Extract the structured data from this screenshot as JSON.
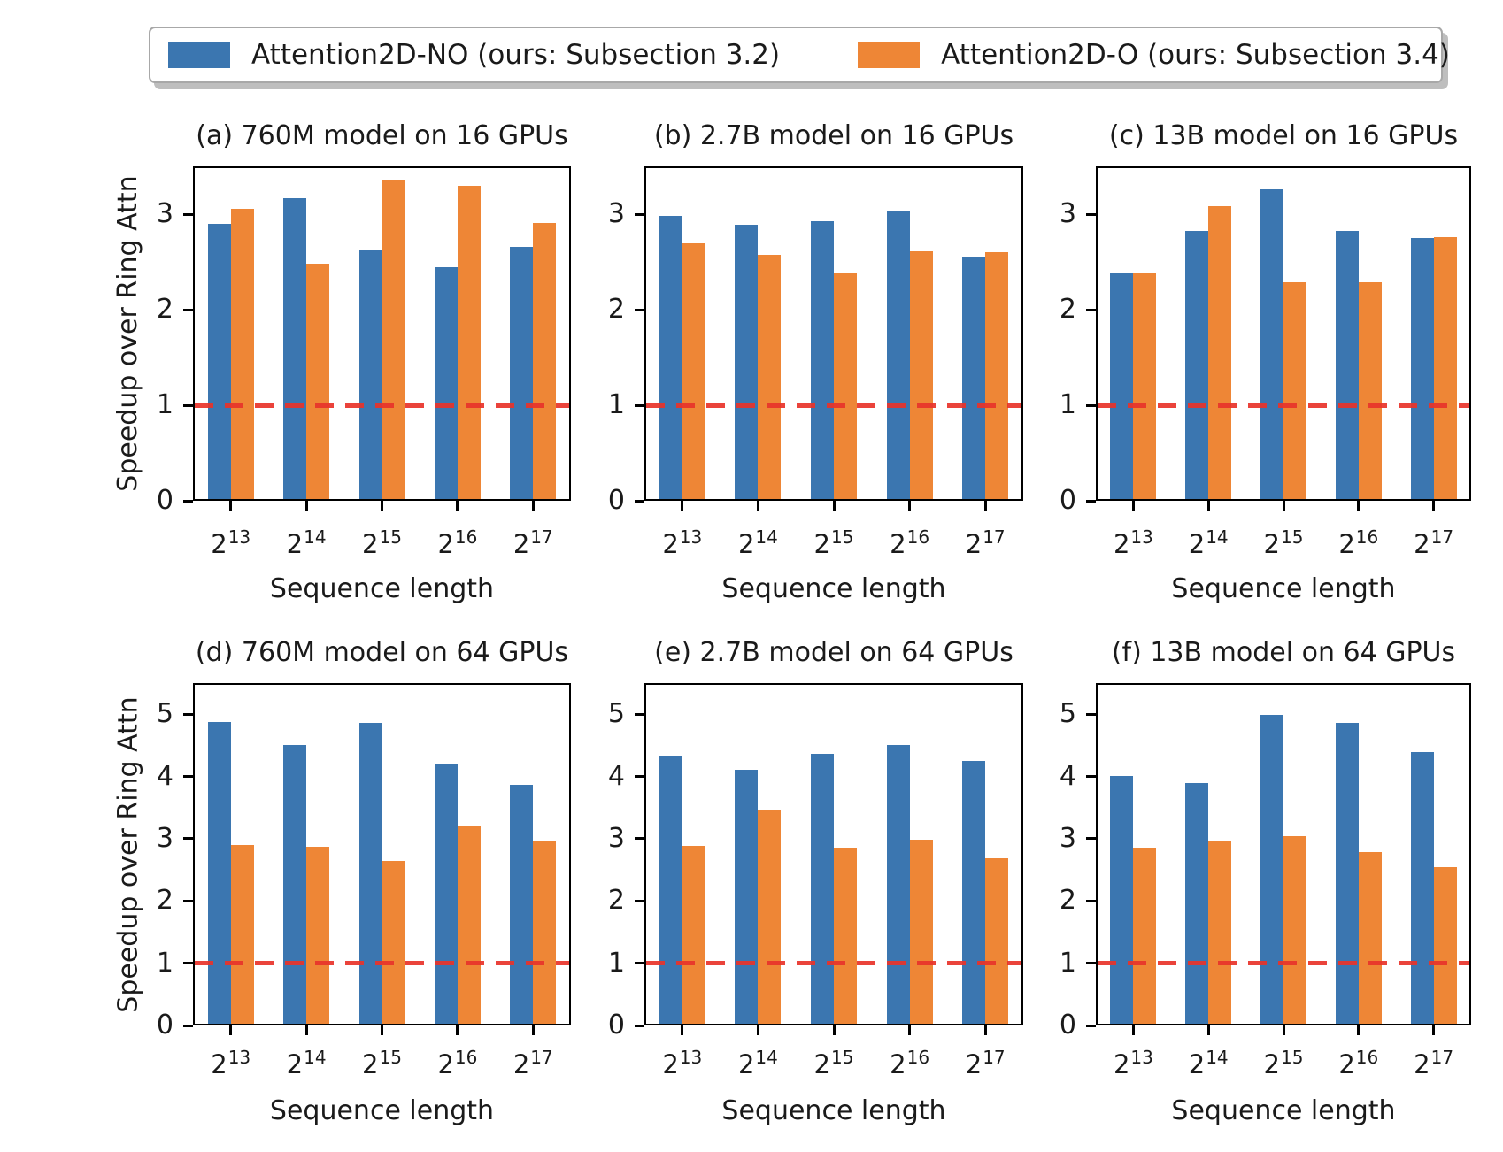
{
  "legend": {
    "items": [
      {
        "label": "Attention2D-NO (ours: Subsection 3.2)",
        "color": "#3b76b0"
      },
      {
        "label": "Attention2D-O (ours: Subsection 3.4)",
        "color": "#ee8636"
      }
    ]
  },
  "colors": {
    "series_blue": "#3b76b0",
    "series_orange": "#ee8636",
    "baseline_red": "#e8332a",
    "text": "#1a1a1a"
  },
  "chart_data": [
    {
      "id": "a",
      "type": "bar",
      "row": 0,
      "col": 0,
      "show_ylabel": true,
      "title": "(a) 760M model on 16 GPUs",
      "xlabel": "Sequence length",
      "ylabel": "Speedup over Ring Attn",
      "categories": [
        "2^13",
        "2^14",
        "2^15",
        "2^16",
        "2^17"
      ],
      "ylim": [
        0,
        3.5
      ],
      "yticks": [
        0,
        1,
        2,
        3
      ],
      "grid": false,
      "baseline": {
        "value": 1,
        "color": "#e8332a",
        "style": "dashed"
      },
      "series": [
        {
          "name": "Attention2D-NO (ours: Subsection 3.2)",
          "color": "#3b76b0",
          "values": [
            2.9,
            3.17,
            2.62,
            2.44,
            2.66
          ]
        },
        {
          "name": "Attention2D-O (ours: Subsection 3.4)",
          "color": "#ee8636",
          "values": [
            3.06,
            2.48,
            3.35,
            3.3,
            2.91
          ]
        }
      ]
    },
    {
      "id": "b",
      "type": "bar",
      "row": 0,
      "col": 1,
      "show_ylabel": false,
      "title": "(b) 2.7B model on 16 GPUs",
      "xlabel": "Sequence length",
      "ylabel": "Speedup over Ring Attn",
      "categories": [
        "2^13",
        "2^14",
        "2^15",
        "2^16",
        "2^17"
      ],
      "ylim": [
        0,
        3.5
      ],
      "yticks": [
        0,
        1,
        2,
        3
      ],
      "grid": false,
      "baseline": {
        "value": 1,
        "color": "#e8332a",
        "style": "dashed"
      },
      "series": [
        {
          "name": "Attention2D-NO (ours: Subsection 3.2)",
          "color": "#3b76b0",
          "values": [
            2.98,
            2.89,
            2.93,
            3.03,
            2.55
          ]
        },
        {
          "name": "Attention2D-O (ours: Subsection 3.4)",
          "color": "#ee8636",
          "values": [
            2.69,
            2.57,
            2.39,
            2.61,
            2.6
          ]
        }
      ]
    },
    {
      "id": "c",
      "type": "bar",
      "row": 0,
      "col": 2,
      "show_ylabel": false,
      "title": "(c) 13B model on 16 GPUs",
      "xlabel": "Sequence length",
      "ylabel": "Speedup over Ring Attn",
      "categories": [
        "2^13",
        "2^14",
        "2^15",
        "2^16",
        "2^17"
      ],
      "ylim": [
        0,
        3.5
      ],
      "yticks": [
        0,
        1,
        2,
        3
      ],
      "grid": false,
      "baseline": {
        "value": 1,
        "color": "#e8332a",
        "style": "dashed"
      },
      "series": [
        {
          "name": "Attention2D-NO (ours: Subsection 3.2)",
          "color": "#3b76b0",
          "values": [
            2.38,
            2.82,
            3.26,
            2.82,
            2.75
          ]
        },
        {
          "name": "Attention2D-O (ours: Subsection 3.4)",
          "color": "#ee8636",
          "values": [
            2.38,
            3.08,
            2.29,
            2.29,
            2.76
          ]
        }
      ]
    },
    {
      "id": "d",
      "type": "bar",
      "row": 1,
      "col": 0,
      "show_ylabel": true,
      "title": "(d) 760M model on 64 GPUs",
      "xlabel": "Sequence length",
      "ylabel": "Speedup over Ring Attn",
      "categories": [
        "2^13",
        "2^14",
        "2^15",
        "2^16",
        "2^17"
      ],
      "ylim": [
        0,
        5.5
      ],
      "yticks": [
        0,
        1,
        2,
        3,
        4,
        5
      ],
      "grid": false,
      "baseline": {
        "value": 1,
        "color": "#e8332a",
        "style": "dashed"
      },
      "series": [
        {
          "name": "Attention2D-NO (ours: Subsection 3.2)",
          "color": "#3b76b0",
          "values": [
            4.87,
            4.51,
            4.86,
            4.21,
            3.86
          ]
        },
        {
          "name": "Attention2D-O (ours: Subsection 3.4)",
          "color": "#ee8636",
          "values": [
            2.9,
            2.87,
            2.65,
            3.21,
            2.97
          ]
        }
      ]
    },
    {
      "id": "e",
      "type": "bar",
      "row": 1,
      "col": 1,
      "show_ylabel": false,
      "title": "(e) 2.7B model on 64 GPUs",
      "xlabel": "Sequence length",
      "ylabel": "Speedup over Ring Attn",
      "categories": [
        "2^13",
        "2^14",
        "2^15",
        "2^16",
        "2^17"
      ],
      "ylim": [
        0,
        5.5
      ],
      "yticks": [
        0,
        1,
        2,
        3,
        4,
        5
      ],
      "grid": false,
      "baseline": {
        "value": 1,
        "color": "#e8332a",
        "style": "dashed"
      },
      "series": [
        {
          "name": "Attention2D-NO (ours: Subsection 3.2)",
          "color": "#3b76b0",
          "values": [
            4.34,
            4.11,
            4.36,
            4.5,
            4.25
          ]
        },
        {
          "name": "Attention2D-O (ours: Subsection 3.4)",
          "color": "#ee8636",
          "values": [
            2.89,
            3.46,
            2.86,
            2.98,
            2.68
          ]
        }
      ]
    },
    {
      "id": "f",
      "type": "bar",
      "row": 1,
      "col": 2,
      "show_ylabel": false,
      "title": "(f) 13B model on 64 GPUs",
      "xlabel": "Sequence length",
      "ylabel": "Speedup over Ring Attn",
      "categories": [
        "2^13",
        "2^14",
        "2^15",
        "2^16",
        "2^17"
      ],
      "ylim": [
        0,
        5.5
      ],
      "yticks": [
        0,
        1,
        2,
        3,
        4,
        5
      ],
      "grid": false,
      "baseline": {
        "value": 1,
        "color": "#e8332a",
        "style": "dashed"
      },
      "series": [
        {
          "name": "Attention2D-NO (ours: Subsection 3.2)",
          "color": "#3b76b0",
          "values": [
            4.01,
            3.9,
            4.99,
            4.86,
            4.39
          ]
        },
        {
          "name": "Attention2D-O (ours: Subsection 3.4)",
          "color": "#ee8636",
          "values": [
            2.86,
            2.97,
            3.04,
            2.79,
            2.54
          ]
        }
      ]
    }
  ]
}
